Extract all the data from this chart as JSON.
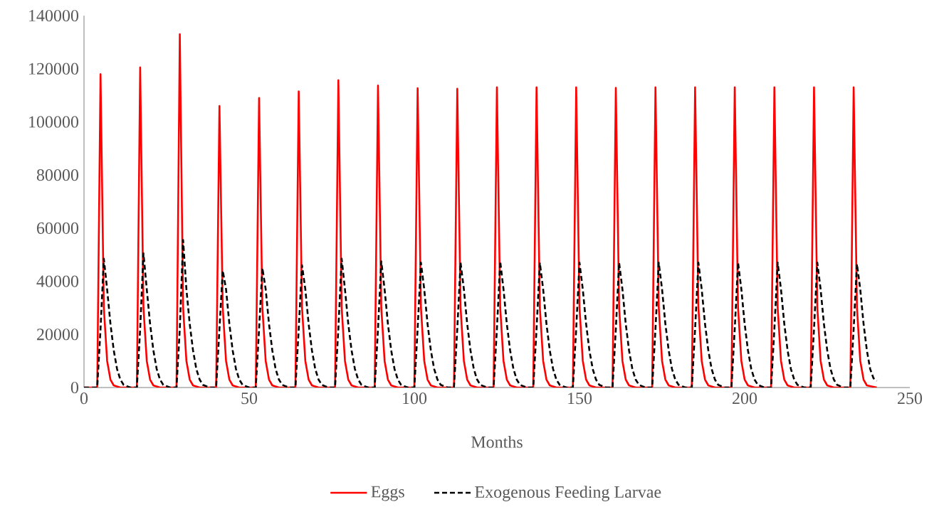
{
  "chart_data": {
    "type": "line",
    "xlabel": "Months",
    "xlim": [
      0,
      250
    ],
    "xticks": [
      0,
      50,
      100,
      150,
      200,
      250
    ],
    "ylim": [
      0,
      140000
    ],
    "yticks": [
      0,
      20000,
      40000,
      60000,
      80000,
      100000,
      120000,
      140000
    ],
    "grid": false,
    "legend": "bottom",
    "series": [
      {
        "name": "Eggs",
        "color": "#ff0000",
        "line_style": "solid",
        "x": [
          0,
          4,
          5,
          6,
          7,
          8,
          9,
          11,
          16,
          17,
          18,
          19,
          20,
          21,
          23,
          28,
          29,
          30,
          31,
          32,
          33,
          35,
          40,
          41,
          42,
          43,
          44,
          45,
          47,
          52,
          53,
          54,
          55,
          56,
          57,
          59,
          64,
          65,
          66,
          67,
          68,
          69,
          71,
          76,
          77,
          78,
          79,
          80,
          81,
          83,
          88,
          89,
          90,
          91,
          92,
          93,
          95,
          100,
          101,
          102,
          103,
          104,
          105,
          107,
          112,
          113,
          114,
          115,
          116,
          117,
          119,
          124,
          125,
          126,
          127,
          128,
          129,
          131,
          136,
          137,
          138,
          139,
          140,
          141,
          143,
          148,
          149,
          150,
          151,
          152,
          153,
          155,
          160,
          161,
          162,
          163,
          164,
          165,
          167,
          172,
          173,
          174,
          175,
          176,
          177,
          179,
          184,
          185,
          186,
          187,
          188,
          189,
          191,
          196,
          197,
          198,
          199,
          200,
          201,
          203,
          208,
          209,
          210,
          211,
          212,
          213,
          215,
          220,
          221,
          222,
          223,
          224,
          225,
          227,
          232,
          233,
          234,
          235,
          236,
          237,
          240
        ],
        "values": [
          0,
          0,
          118000,
          30000,
          10000,
          3000,
          800,
          0,
          0,
          120500,
          30000,
          10000,
          3000,
          800,
          0,
          0,
          133000,
          30000,
          10000,
          3000,
          800,
          0,
          0,
          106000,
          30000,
          10000,
          3000,
          800,
          0,
          0,
          109000,
          30000,
          10000,
          3000,
          800,
          0,
          0,
          111500,
          30000,
          10000,
          3000,
          800,
          0,
          0,
          115700,
          30000,
          10000,
          3000,
          800,
          0,
          0,
          113700,
          30000,
          10000,
          3000,
          800,
          0,
          0,
          112700,
          30000,
          10000,
          3000,
          800,
          0,
          0,
          112500,
          30000,
          10000,
          3000,
          800,
          0,
          0,
          113000,
          30000,
          10000,
          3000,
          800,
          0,
          0,
          113000,
          30000,
          10000,
          3000,
          800,
          0,
          0,
          113000,
          30000,
          10000,
          3000,
          800,
          0,
          0,
          112800,
          30000,
          10000,
          3000,
          800,
          0,
          0,
          113000,
          30000,
          10000,
          3000,
          800,
          0,
          0,
          113000,
          30000,
          10000,
          3000,
          800,
          0,
          0,
          113000,
          30000,
          10000,
          3000,
          800,
          0,
          0,
          113000,
          30000,
          10000,
          3000,
          800,
          0,
          0,
          113000,
          30000,
          10000,
          3000,
          800,
          0,
          0,
          113000,
          30000,
          10000,
          3000,
          800,
          0
        ]
      },
      {
        "name": "Exogenous Feeding Larvae",
        "color": "#000000",
        "line_style": "dashed",
        "x": [
          0,
          4,
          5,
          6,
          7,
          8,
          9,
          10,
          11,
          12,
          14,
          16,
          17,
          18,
          19,
          20,
          21,
          22,
          23,
          24,
          26,
          28,
          29,
          30,
          31,
          32,
          33,
          34,
          35,
          36,
          38,
          40,
          41,
          42,
          43,
          44,
          45,
          46,
          47,
          48,
          50,
          52,
          53,
          54,
          55,
          56,
          57,
          58,
          59,
          60,
          62,
          64,
          65,
          66,
          67,
          68,
          69,
          70,
          71,
          72,
          74,
          76,
          77,
          78,
          79,
          80,
          81,
          82,
          83,
          84,
          86,
          88,
          89,
          90,
          91,
          92,
          93,
          94,
          95,
          96,
          98,
          100,
          101,
          102,
          103,
          104,
          105,
          106,
          107,
          108,
          110,
          112,
          113,
          114,
          115,
          116,
          117,
          118,
          119,
          120,
          122,
          124,
          125,
          126,
          127,
          128,
          129,
          130,
          131,
          132,
          134,
          136,
          137,
          138,
          139,
          140,
          141,
          142,
          143,
          144,
          146,
          148,
          149,
          150,
          151,
          152,
          153,
          154,
          155,
          156,
          158,
          160,
          161,
          162,
          163,
          164,
          165,
          166,
          167,
          168,
          170,
          172,
          173,
          174,
          175,
          176,
          177,
          178,
          179,
          180,
          182,
          184,
          185,
          186,
          187,
          188,
          189,
          190,
          191,
          192,
          194,
          196,
          197,
          198,
          199,
          200,
          201,
          202,
          203,
          204,
          206,
          208,
          209,
          210,
          211,
          212,
          213,
          214,
          215,
          216,
          218,
          220,
          221,
          222,
          223,
          224,
          225,
          226,
          227,
          228,
          230,
          232,
          233,
          234,
          235,
          236,
          237,
          238,
          239,
          240
        ],
        "values": [
          0,
          0,
          22000,
          48500,
          37000,
          24000,
          14000,
          7000,
          3000,
          1000,
          0,
          0,
          22000,
          50500,
          37000,
          24000,
          14000,
          7000,
          3000,
          1000,
          0,
          0,
          22000,
          55500,
          37000,
          24000,
          14000,
          7000,
          3000,
          1000,
          0,
          0,
          22000,
          44000,
          37000,
          24000,
          14000,
          7000,
          3000,
          1000,
          0,
          0,
          22000,
          45000,
          37000,
          24000,
          14000,
          7000,
          3000,
          1000,
          0,
          0,
          22000,
          46000,
          37000,
          24000,
          14000,
          7000,
          3000,
          1000,
          0,
          0,
          22000,
          48500,
          37000,
          24000,
          14000,
          7000,
          3000,
          1000,
          0,
          0,
          22000,
          47500,
          37000,
          24000,
          14000,
          7000,
          3000,
          1000,
          0,
          0,
          22000,
          47000,
          37000,
          24000,
          14000,
          7000,
          3000,
          1000,
          0,
          0,
          22000,
          47000,
          37000,
          24000,
          14000,
          7000,
          3000,
          1000,
          0,
          0,
          22000,
          47500,
          37000,
          24000,
          14000,
          7000,
          3000,
          1000,
          0,
          0,
          22000,
          47000,
          37000,
          24000,
          14000,
          7000,
          3000,
          1000,
          0,
          0,
          22000,
          47000,
          37000,
          24000,
          14000,
          7000,
          3000,
          1000,
          0,
          0,
          22000,
          47000,
          37000,
          24000,
          14000,
          7000,
          3000,
          1000,
          0,
          0,
          22000,
          47000,
          37000,
          24000,
          14000,
          7000,
          3000,
          1000,
          0,
          0,
          22000,
          47000,
          37000,
          24000,
          14000,
          7000,
          3000,
          1000,
          0,
          0,
          22000,
          47000,
          37000,
          24000,
          14000,
          7000,
          3000,
          1000,
          0,
          0,
          22000,
          47000,
          37000,
          24000,
          14000,
          7000,
          3000,
          1000,
          0,
          0,
          22000,
          47000,
          37000,
          24000,
          14000,
          7000,
          3000,
          1000,
          0,
          0,
          22000,
          46500,
          37000,
          24000,
          14000,
          7000,
          3500,
          2500
        ]
      }
    ]
  }
}
